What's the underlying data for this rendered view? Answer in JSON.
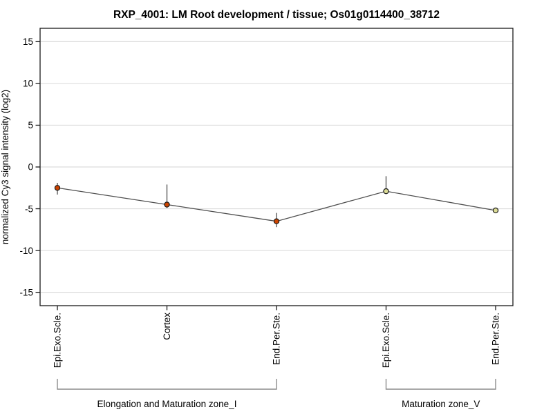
{
  "title": "RXP_4001: LM Root development / tissue; Os01g0114400_38712",
  "chart_data": {
    "type": "line",
    "title": "RXP_4001: LM Root development / tissue; Os01g0114400_38712",
    "xlabel": "",
    "ylabel": "normalized Cy3 signal intensity (log2)",
    "ylim": [
      -16.6,
      16.6
    ],
    "yticks": [
      15,
      10,
      5,
      0,
      -5,
      -10,
      -15
    ],
    "grid": "horizontal",
    "legend": "none",
    "categories": [
      "Epi.Exo.Scle.",
      "Cortex",
      "End.Per.Ste.",
      "Epi.Exo.Scle.",
      "End.Per.Ste."
    ],
    "series": [
      {
        "name": "normalized Cy3 signal intensity (log2)",
        "values": [
          -2.5,
          -4.5,
          -6.5,
          -2.9,
          -5.2
        ],
        "error_low": [
          -3.3,
          -4.9,
          -7.2,
          -3.2,
          -5.5
        ],
        "error_high": [
          -1.9,
          -2.1,
          -5.5,
          -1.1,
          -4.9
        ]
      }
    ],
    "point_colors": [
      "#cc4400",
      "#cc4400",
      "#cc4400",
      "#dcdc96",
      "#dcdc96"
    ],
    "groups": [
      {
        "label": "Elongation and Maturation zone_I",
        "from": 0,
        "to": 2
      },
      {
        "label": "Maturation zone_V",
        "from": 3,
        "to": 4
      }
    ],
    "colors": {
      "line": "#4d4d4d",
      "error_bar": "#5a5a5a",
      "grid": "#dcdcdc",
      "frame": "#1a1a1a",
      "marker_stroke": "#1a1a1a",
      "bracket": "#8c8c8c"
    }
  }
}
